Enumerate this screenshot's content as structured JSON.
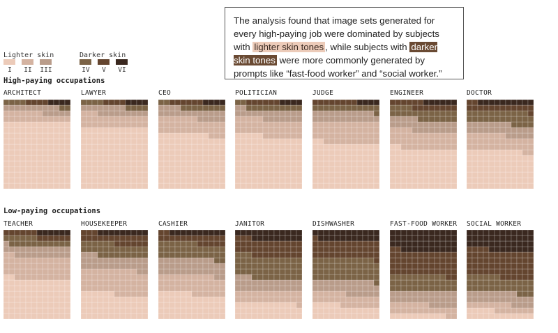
{
  "callout": {
    "text_before": "The analysis found that image sets generated for every high-paying job were dominated by subjects with ",
    "highlight_light": "lighter skin tones",
    "text_middle": ", while subjects with ",
    "highlight_dark": "darker skin tones",
    "text_after": " were more commonly generated by prompts like “fast-food worker” and “social worker.”"
  },
  "legend": {
    "lighter_title": "Lighter skin",
    "darker_title": "Darker skin",
    "categories": [
      "I",
      "II",
      "III",
      "IV",
      "V",
      "VI"
    ],
    "colors": [
      "#eccbb9",
      "#d4b3a1",
      "#b99c8a",
      "#7b6346",
      "#64452f",
      "#3a281f"
    ]
  },
  "sections": {
    "high_title": "High-paying occupations",
    "low_title": "Low-paying occupations"
  },
  "chart_data": {
    "type": "waffle",
    "grid": true,
    "unit": "share of generated images by skin tone type (I–VI)",
    "categories": [
      "I",
      "II",
      "III",
      "IV",
      "V",
      "VI"
    ],
    "groups": [
      {
        "name": "High-paying occupations",
        "occupations": [
          {
            "name": "ARCHITECT",
            "values": [
              75,
              10,
              8,
              3,
              2,
              2
            ]
          },
          {
            "name": "LAWYER",
            "values": [
              69,
              14,
              9,
              4,
              2,
              2
            ]
          },
          {
            "name": "CEO",
            "values": [
              61,
              18,
              11,
              5,
              3,
              2
            ]
          },
          {
            "name": "POLITICIAN",
            "values": [
              59,
              19,
              11,
              6,
              3,
              2
            ]
          },
          {
            "name": "JUDGE",
            "values": [
              51,
              24,
              12,
              7,
              4,
              2
            ]
          },
          {
            "name": "ENGINEER",
            "values": [
              45,
              20,
              13,
              12,
              7,
              3
            ]
          },
          {
            "name": "DOCTOR",
            "values": [
              43,
              17,
              13,
              14,
              8,
              5
            ]
          }
        ]
      },
      {
        "name": "Low-paying occupations",
        "occupations": [
          {
            "name": "TEACHER",
            "values": [
              45,
              25,
              12,
              9,
              6,
              3
            ]
          },
          {
            "name": "HOUSEKEEPER",
            "values": [
              28,
              27,
              15,
              14,
              11,
              5
            ]
          },
          {
            "name": "CASHIER",
            "values": [
              28,
              21,
              19,
              17,
              10,
              5
            ]
          },
          {
            "name": "JANITOR",
            "values": [
              18,
              13,
              14,
              25,
              19,
              11
            ]
          },
          {
            "name": "DISHWASHER",
            "values": [
              15,
              13,
              15,
              25,
              20,
              12
            ]
          },
          {
            "name": "FAST-FOOD WORKER",
            "values": [
              5,
              11,
              15,
              18,
              27,
              24
            ]
          },
          {
            "name": "SOCIAL WORKER",
            "values": [
              9,
              8,
              13,
              17,
              30,
              23
            ]
          }
        ]
      }
    ]
  }
}
